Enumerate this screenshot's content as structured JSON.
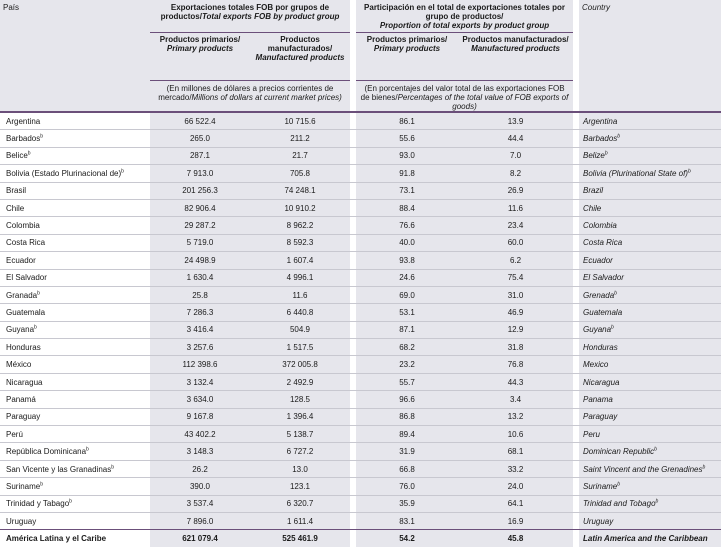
{
  "header": {
    "country_es": "País",
    "country_en": "Country",
    "group1_es": "Exportaciones totales FOB por grupos de productos/",
    "group1_en": "Total exports FOB by product group",
    "group2_es": "Participación en el total de exportaciones totales por grupo de productos/",
    "group2_en": "Proportion of total exports by product group",
    "primary_es": "Productos primarios/",
    "primary_en": "Primary products",
    "manuf_es": "Productos manufacturados/",
    "manuf_en": "Manufactured products",
    "unit1_es": "(En millones de dólares a precios corrientes de mercado/",
    "unit1_en": "Millions of dollars at current market prices)",
    "unit2_es": "(En porcentajes del valor total de las exportaciones FOB de bienes/",
    "unit2_en": "Percentages of the total value of FOB exports of goods)"
  },
  "rows": [
    {
      "es": "Argentina",
      "note": "",
      "primary": "66 522.4",
      "manuf": "10 715.6",
      "pct_primary": "86.1",
      "pct_manuf": "13.9",
      "en": "Argentina"
    },
    {
      "es": "Barbados",
      "note": "b",
      "primary": "265.0",
      "manuf": "211.2",
      "pct_primary": "55.6",
      "pct_manuf": "44.4",
      "en": "Barbados"
    },
    {
      "es": "Belice",
      "note": "b",
      "primary": "287.1",
      "manuf": "21.7",
      "pct_primary": "93.0",
      "pct_manuf": "7.0",
      "en": "Belize"
    },
    {
      "es": "Bolivia (Estado Plurinacional de)",
      "note": "b",
      "primary": "7 913.0",
      "manuf": "705.8",
      "pct_primary": "91.8",
      "pct_manuf": "8.2",
      "en": "Bolivia (Plurinational State of)"
    },
    {
      "es": "Brasil",
      "note": "",
      "primary": "201 256.3",
      "manuf": "74 248.1",
      "pct_primary": "73.1",
      "pct_manuf": "26.9",
      "en": "Brazil"
    },
    {
      "es": "Chile",
      "note": "",
      "primary": "82 906.4",
      "manuf": "10 910.2",
      "pct_primary": "88.4",
      "pct_manuf": "11.6",
      "en": "Chile"
    },
    {
      "es": "Colombia",
      "note": "",
      "primary": "29 287.2",
      "manuf": "8 962.2",
      "pct_primary": "76.6",
      "pct_manuf": "23.4",
      "en": "Colombia"
    },
    {
      "es": "Costa Rica",
      "note": "",
      "primary": "5 719.0",
      "manuf": "8 592.3",
      "pct_primary": "40.0",
      "pct_manuf": "60.0",
      "en": "Costa Rica"
    },
    {
      "es": "Ecuador",
      "note": "",
      "primary": "24 498.9",
      "manuf": "1 607.4",
      "pct_primary": "93.8",
      "pct_manuf": "6.2",
      "en": "Ecuador"
    },
    {
      "es": "El Salvador",
      "note": "",
      "primary": "1 630.4",
      "manuf": "4 996.1",
      "pct_primary": "24.6",
      "pct_manuf": "75.4",
      "en": "El Salvador"
    },
    {
      "es": "Granada",
      "note": "b",
      "primary": "25.8",
      "manuf": "11.6",
      "pct_primary": "69.0",
      "pct_manuf": "31.0",
      "en": "Grenada"
    },
    {
      "es": "Guatemala",
      "note": "",
      "primary": "7 286.3",
      "manuf": "6 440.8",
      "pct_primary": "53.1",
      "pct_manuf": "46.9",
      "en": "Guatemala"
    },
    {
      "es": "Guyana",
      "note": "b",
      "primary": "3 416.4",
      "manuf": "504.9",
      "pct_primary": "87.1",
      "pct_manuf": "12.9",
      "en": "Guyana"
    },
    {
      "es": "Honduras",
      "note": "",
      "primary": "3 257.6",
      "manuf": "1 517.5",
      "pct_primary": "68.2",
      "pct_manuf": "31.8",
      "en": "Honduras"
    },
    {
      "es": "México",
      "note": "",
      "primary": "112 398.6",
      "manuf": "372 005.8",
      "pct_primary": "23.2",
      "pct_manuf": "76.8",
      "en": "Mexico"
    },
    {
      "es": "Nicaragua",
      "note": "",
      "primary": "3 132.4",
      "manuf": "2 492.9",
      "pct_primary": "55.7",
      "pct_manuf": "44.3",
      "en": "Nicaragua"
    },
    {
      "es": "Panamá",
      "note": "",
      "primary": "3 634.0",
      "manuf": "128.5",
      "pct_primary": "96.6",
      "pct_manuf": "3.4",
      "en": "Panama"
    },
    {
      "es": "Paraguay",
      "note": "",
      "primary": "9 167.8",
      "manuf": "1 396.4",
      "pct_primary": "86.8",
      "pct_manuf": "13.2",
      "en": "Paraguay"
    },
    {
      "es": "Perú",
      "note": "",
      "primary": "43 402.2",
      "manuf": "5 138.7",
      "pct_primary": "89.4",
      "pct_manuf": "10.6",
      "en": "Peru"
    },
    {
      "es": "República Dominicana",
      "note": "b",
      "primary": "3 148.3",
      "manuf": "6 727.2",
      "pct_primary": "31.9",
      "pct_manuf": "68.1",
      "en": "Dominican Republic"
    },
    {
      "es": "San Vicente y las Granadinas",
      "note": "b",
      "primary": "26.2",
      "manuf": "13.0",
      "pct_primary": "66.8",
      "pct_manuf": "33.2",
      "en": "Saint Vincent and the Grenadines"
    },
    {
      "es": "Suriname",
      "note": "b",
      "primary": "390.0",
      "manuf": "123.1",
      "pct_primary": "76.0",
      "pct_manuf": "24.0",
      "en": "Suriname"
    },
    {
      "es": "Trinidad y Tabago",
      "note": "b",
      "primary": "3 537.4",
      "manuf": "6 320.7",
      "pct_primary": "35.9",
      "pct_manuf": "64.1",
      "en": "Trinidad and Tobago"
    },
    {
      "es": "Uruguay",
      "note": "",
      "primary": "7 896.0",
      "manuf": "1 611.4",
      "pct_primary": "83.1",
      "pct_manuf": "16.9",
      "en": "Uruguay"
    }
  ],
  "total": {
    "es": "América Latina y el Caribe",
    "primary": "621 079.4",
    "manuf": "525 461.9",
    "pct_primary": "54.2",
    "pct_manuf": "45.8",
    "en": "Latin America and the Caribbean"
  }
}
